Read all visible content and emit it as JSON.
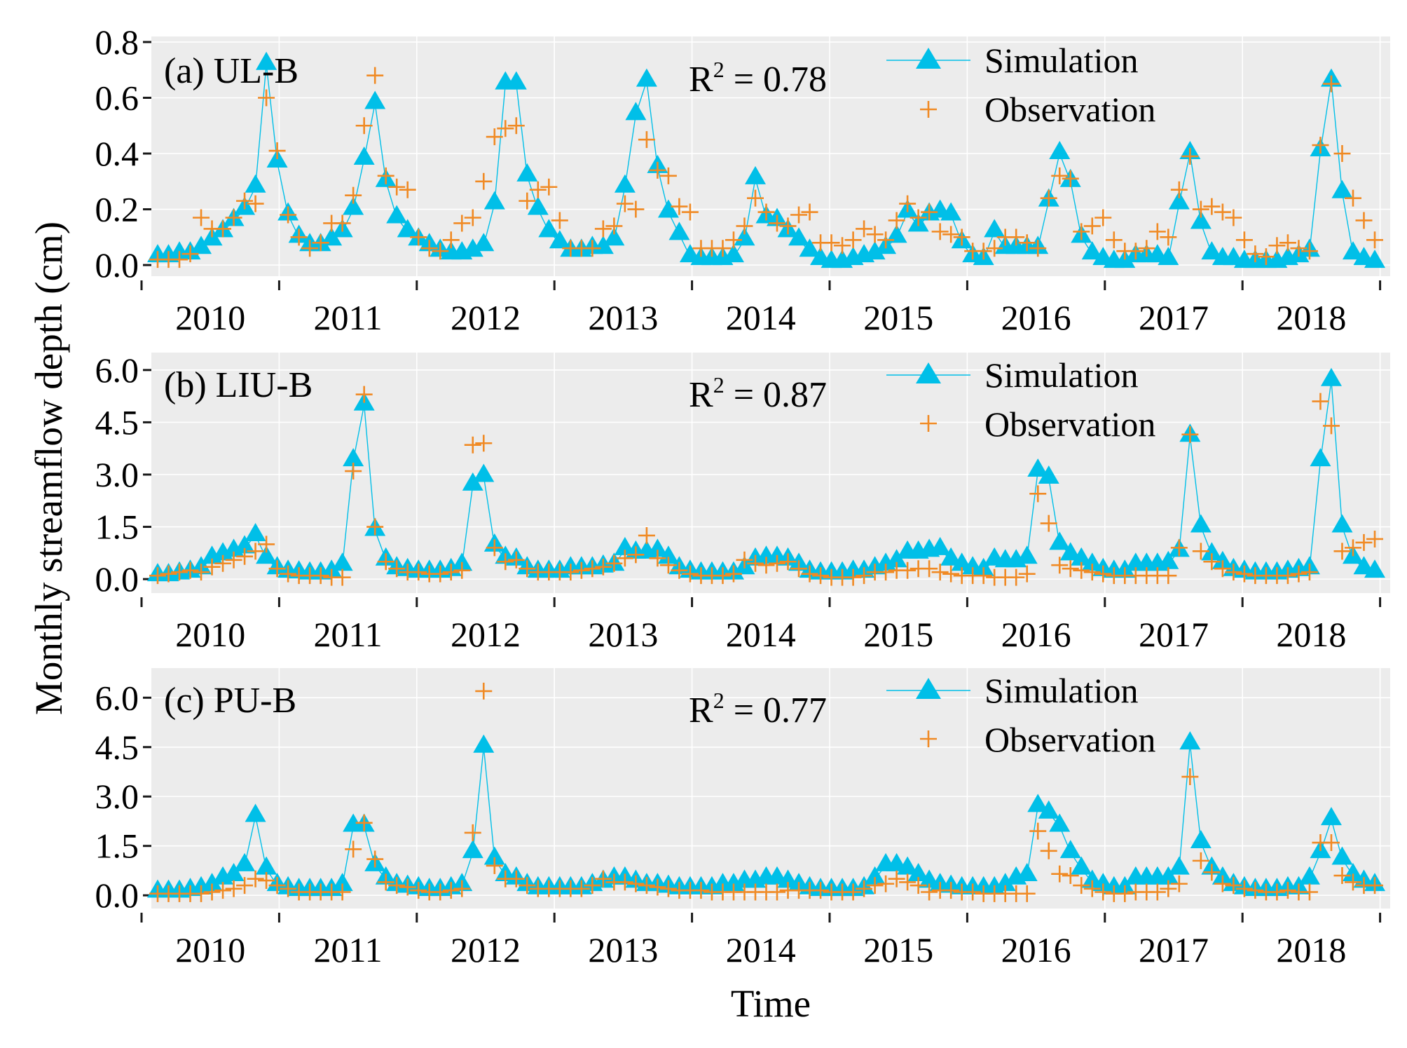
{
  "chart_data": [
    {
      "type": "line",
      "panel_label": "(a) UL-B",
      "r2": {
        "prefix": "R",
        "sup": "2",
        "value": " = 0.78"
      },
      "ylim": [
        -0.04,
        0.82
      ],
      "yticks": [
        0.0,
        0.2,
        0.4,
        0.6,
        0.8
      ],
      "ytick_labels": [
        "0.0",
        "0.2",
        "0.4",
        "0.6",
        "0.8"
      ],
      "x_start": "2010-01",
      "xtick_labels": [
        "2010",
        "2011",
        "2012",
        "2013",
        "2014",
        "2015",
        "2016",
        "2017",
        "2018"
      ],
      "legend": {
        "simulation": "Simulation",
        "observation": "Observation"
      },
      "series": [
        {
          "name": "Simulation",
          "color": "#00bfe8",
          "marker": "triangle",
          "values": [
            0.03,
            0.03,
            0.04,
            0.04,
            0.06,
            0.09,
            0.12,
            0.16,
            0.2,
            0.28,
            0.72,
            0.37,
            0.18,
            0.1,
            0.07,
            0.07,
            0.09,
            0.12,
            0.2,
            0.38,
            0.58,
            0.3,
            0.17,
            0.12,
            0.09,
            0.07,
            0.05,
            0.04,
            0.04,
            0.05,
            0.07,
            0.22,
            0.65,
            0.65,
            0.32,
            0.2,
            0.12,
            0.08,
            0.05,
            0.05,
            0.06,
            0.06,
            0.09,
            0.28,
            0.54,
            0.66,
            0.35,
            0.19,
            0.11,
            0.03,
            0.02,
            0.02,
            0.02,
            0.03,
            0.09,
            0.31,
            0.17,
            0.16,
            0.12,
            0.09,
            0.05,
            0.02,
            0.01,
            0.01,
            0.02,
            0.03,
            0.04,
            0.06,
            0.1,
            0.19,
            0.14,
            0.18,
            0.19,
            0.18,
            0.08,
            0.03,
            0.02,
            0.12,
            0.06,
            0.06,
            0.06,
            0.06,
            0.23,
            0.4,
            0.3,
            0.1,
            0.04,
            0.02,
            0.01,
            0.01,
            0.03,
            0.03,
            0.03,
            0.02,
            0.22,
            0.4,
            0.15,
            0.04,
            0.02,
            0.02,
            0.01,
            0.01,
            0.01,
            0.01,
            0.02,
            0.03,
            0.05,
            0.41,
            0.66,
            0.26,
            0.04,
            0.02,
            0.01
          ]
        },
        {
          "name": "Observation",
          "color": "#f08a24",
          "marker": "plus",
          "values": [
            0.02,
            0.02,
            0.02,
            0.04,
            0.17,
            0.13,
            0.13,
            0.17,
            0.23,
            0.22,
            0.6,
            0.41,
            0.18,
            0.1,
            0.06,
            0.08,
            0.15,
            0.15,
            0.25,
            0.5,
            0.68,
            0.32,
            0.28,
            0.27,
            0.1,
            0.06,
            0.05,
            0.09,
            0.15,
            0.17,
            0.3,
            0.46,
            0.49,
            0.5,
            0.23,
            0.27,
            0.28,
            0.16,
            0.06,
            0.06,
            0.06,
            0.13,
            0.14,
            0.22,
            0.2,
            0.45,
            0.34,
            0.32,
            0.21,
            0.19,
            0.06,
            0.06,
            0.06,
            0.09,
            0.14,
            0.24,
            0.19,
            0.15,
            0.14,
            0.18,
            0.19,
            0.08,
            0.08,
            0.07,
            0.09,
            0.13,
            0.11,
            0.09,
            0.16,
            0.22,
            0.17,
            0.19,
            0.12,
            0.11,
            0.1,
            0.05,
            0.05,
            0.06,
            0.1,
            0.1,
            0.08,
            0.06,
            0.24,
            0.32,
            0.31,
            0.12,
            0.14,
            0.17,
            0.09,
            0.05,
            0.05,
            0.06,
            0.12,
            0.1,
            0.27,
            0.39,
            0.2,
            0.21,
            0.19,
            0.17,
            0.09,
            0.04,
            0.03,
            0.07,
            0.08,
            0.06,
            0.05,
            0.43,
            0.65,
            0.4,
            0.24,
            0.16,
            0.09
          ]
        }
      ]
    },
    {
      "type": "line",
      "panel_label": "(b) LIU-B",
      "r2": {
        "prefix": "R",
        "sup": "2",
        "value": " = 0.87"
      },
      "ylim": [
        -0.4,
        6.5
      ],
      "yticks": [
        0.0,
        1.5,
        3.0,
        4.5,
        6.0
      ],
      "ytick_labels": [
        "0.0",
        "1.5",
        "3.0",
        "4.5",
        "6.0"
      ],
      "x_start": "2010-01",
      "xtick_labels": [
        "2010",
        "2011",
        "2012",
        "2013",
        "2014",
        "2015",
        "2016",
        "2017",
        "2018"
      ],
      "legend": {
        "simulation": "Simulation",
        "observation": "Observation"
      },
      "series": [
        {
          "name": "Simulation",
          "color": "#00bfe8",
          "marker": "triangle",
          "values": [
            0.1,
            0.1,
            0.15,
            0.2,
            0.3,
            0.6,
            0.7,
            0.8,
            0.9,
            1.25,
            0.6,
            0.3,
            0.2,
            0.18,
            0.15,
            0.15,
            0.2,
            0.4,
            3.4,
            5.0,
            1.4,
            0.55,
            0.3,
            0.25,
            0.2,
            0.2,
            0.2,
            0.25,
            0.4,
            2.7,
            2.95,
            0.95,
            0.6,
            0.55,
            0.3,
            0.2,
            0.2,
            0.2,
            0.3,
            0.3,
            0.3,
            0.35,
            0.4,
            0.85,
            0.75,
            0.75,
            0.8,
            0.6,
            0.3,
            0.2,
            0.15,
            0.15,
            0.15,
            0.15,
            0.3,
            0.55,
            0.6,
            0.6,
            0.55,
            0.4,
            0.2,
            0.15,
            0.15,
            0.15,
            0.2,
            0.2,
            0.3,
            0.4,
            0.5,
            0.75,
            0.75,
            0.8,
            0.85,
            0.55,
            0.4,
            0.3,
            0.25,
            0.55,
            0.5,
            0.5,
            0.6,
            3.1,
            2.9,
            1.0,
            0.7,
            0.55,
            0.4,
            0.25,
            0.2,
            0.2,
            0.4,
            0.4,
            0.4,
            0.45,
            0.8,
            4.1,
            1.5,
            0.7,
            0.45,
            0.25,
            0.2,
            0.15,
            0.15,
            0.15,
            0.2,
            0.25,
            0.3,
            3.4,
            5.7,
            1.5,
            0.6,
            0.3,
            0.2
          ]
        },
        {
          "name": "Observation",
          "color": "#f08a24",
          "marker": "plus",
          "values": [
            0.1,
            0.15,
            0.2,
            0.25,
            0.2,
            0.35,
            0.45,
            0.55,
            0.65,
            0.8,
            1.0,
            0.3,
            0.15,
            0.1,
            0.1,
            0.1,
            0.05,
            0.05,
            3.1,
            5.3,
            1.5,
            0.5,
            0.3,
            0.2,
            0.2,
            0.15,
            0.15,
            0.2,
            0.25,
            3.85,
            3.9,
            0.9,
            0.5,
            0.55,
            0.3,
            0.2,
            0.2,
            0.2,
            0.2,
            0.25,
            0.3,
            0.35,
            0.45,
            0.6,
            0.7,
            1.25,
            0.6,
            0.4,
            0.25,
            0.15,
            0.1,
            0.1,
            0.1,
            0.15,
            0.55,
            0.45,
            0.4,
            0.45,
            0.5,
            0.3,
            0.15,
            0.1,
            0.05,
            0.05,
            0.05,
            0.1,
            0.2,
            0.2,
            0.25,
            0.25,
            0.3,
            0.3,
            0.2,
            0.15,
            0.1,
            0.1,
            0.1,
            0.05,
            0.05,
            0.05,
            0.15,
            2.45,
            1.6,
            0.4,
            0.3,
            0.25,
            0.2,
            0.15,
            0.1,
            0.1,
            0.1,
            0.1,
            0.1,
            0.1,
            0.9,
            4.15,
            0.8,
            0.5,
            0.3,
            0.2,
            0.15,
            0.1,
            0.1,
            0.1,
            0.1,
            0.15,
            0.2,
            5.1,
            4.4,
            0.8,
            0.9,
            1.05,
            1.15
          ]
        }
      ]
    },
    {
      "type": "line",
      "panel_label": "(c) PU-B",
      "r2": {
        "prefix": "R",
        "sup": "2",
        "value": " = 0.77"
      },
      "ylim": [
        -0.4,
        6.9
      ],
      "yticks": [
        0.0,
        1.5,
        3.0,
        4.5,
        6.0
      ],
      "ytick_labels": [
        "0.0",
        "1.5",
        "3.0",
        "4.5",
        "6.0"
      ],
      "x_start": "2010-01",
      "xtick_labels": [
        "2010",
        "2011",
        "2012",
        "2013",
        "2014",
        "2015",
        "2016",
        "2017",
        "2018"
      ],
      "legend": {
        "simulation": "Simulation",
        "observation": "Observation"
      },
      "series": [
        {
          "name": "Simulation",
          "color": "#00bfe8",
          "marker": "triangle",
          "values": [
            0.1,
            0.1,
            0.1,
            0.15,
            0.2,
            0.3,
            0.5,
            0.6,
            0.9,
            2.4,
            0.8,
            0.3,
            0.2,
            0.15,
            0.15,
            0.15,
            0.15,
            0.3,
            2.1,
            2.1,
            0.9,
            0.5,
            0.3,
            0.25,
            0.2,
            0.15,
            0.15,
            0.2,
            0.3,
            1.3,
            4.5,
            1.1,
            0.6,
            0.5,
            0.3,
            0.2,
            0.2,
            0.2,
            0.2,
            0.2,
            0.3,
            0.4,
            0.5,
            0.5,
            0.4,
            0.3,
            0.3,
            0.25,
            0.2,
            0.2,
            0.2,
            0.2,
            0.3,
            0.3,
            0.4,
            0.4,
            0.5,
            0.5,
            0.4,
            0.3,
            0.2,
            0.15,
            0.15,
            0.15,
            0.15,
            0.2,
            0.5,
            0.9,
            0.9,
            0.8,
            0.6,
            0.4,
            0.3,
            0.25,
            0.2,
            0.2,
            0.2,
            0.2,
            0.3,
            0.5,
            0.6,
            2.7,
            2.5,
            2.1,
            1.3,
            0.8,
            0.4,
            0.3,
            0.2,
            0.2,
            0.5,
            0.5,
            0.5,
            0.5,
            0.8,
            4.6,
            1.6,
            0.8,
            0.5,
            0.3,
            0.2,
            0.15,
            0.15,
            0.15,
            0.2,
            0.2,
            0.5,
            1.3,
            2.3,
            1.1,
            0.6,
            0.4,
            0.3
          ]
        },
        {
          "name": "Observation",
          "color": "#f08a24",
          "marker": "plus",
          "values": [
            0.05,
            0.05,
            0.05,
            0.05,
            0.05,
            0.1,
            0.15,
            0.2,
            0.3,
            0.5,
            0.45,
            0.3,
            0.2,
            0.1,
            0.1,
            0.1,
            0.1,
            0.1,
            1.4,
            2.2,
            1.1,
            0.4,
            0.3,
            0.25,
            0.15,
            0.1,
            0.1,
            0.15,
            0.2,
            1.9,
            6.2,
            0.9,
            0.5,
            0.5,
            0.3,
            0.2,
            0.2,
            0.2,
            0.2,
            0.2,
            0.3,
            0.5,
            0.4,
            0.4,
            0.35,
            0.3,
            0.25,
            0.2,
            0.15,
            0.15,
            0.15,
            0.1,
            0.1,
            0.1,
            0.1,
            0.1,
            0.1,
            0.1,
            0.15,
            0.15,
            0.15,
            0.15,
            0.1,
            0.1,
            0.1,
            0.2,
            0.3,
            0.35,
            0.5,
            0.4,
            0.3,
            0.1,
            0.15,
            0.15,
            0.1,
            0.1,
            0.05,
            0.05,
            0.05,
            0.05,
            0.05,
            1.95,
            1.35,
            0.65,
            0.6,
            0.3,
            0.2,
            0.1,
            0.05,
            0.05,
            0.1,
            0.1,
            0.1,
            0.2,
            0.35,
            3.6,
            1.05,
            0.7,
            0.35,
            0.3,
            0.2,
            0.15,
            0.1,
            0.1,
            0.15,
            0.1,
            0.1,
            1.6,
            1.6,
            0.6,
            0.4,
            0.3,
            0.3
          ]
        }
      ]
    }
  ],
  "axes": {
    "xlabel": "Time",
    "ylabel": "Monthly streamflow depth (cm)"
  }
}
